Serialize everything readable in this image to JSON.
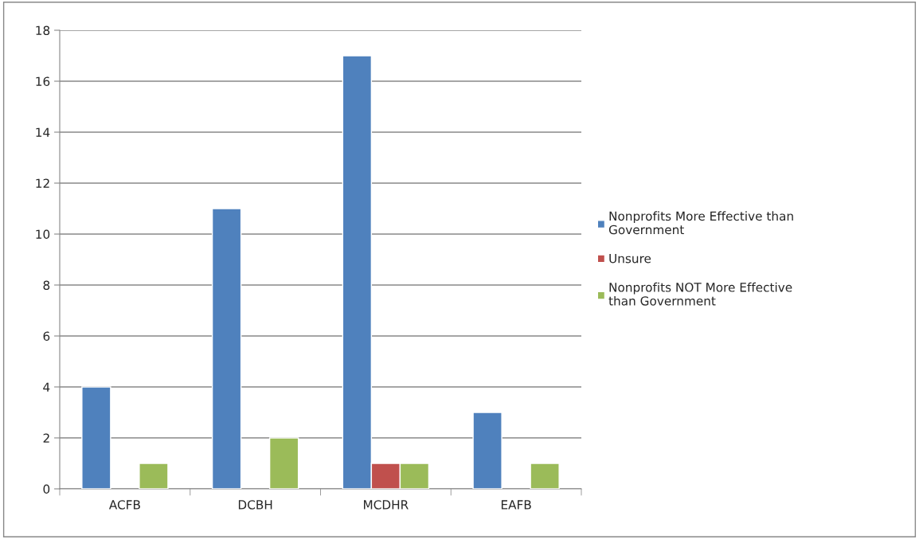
{
  "chart_data": {
    "type": "bar",
    "categories": [
      "ACFB",
      "DCBH",
      "MCDHR",
      "EAFB"
    ],
    "series": [
      {
        "name": "Nonprofits More Effective than Government",
        "color": "#4f81bd",
        "values": [
          4,
          11,
          17,
          3
        ]
      },
      {
        "name": "Unsure",
        "color": "#c0504d",
        "values": [
          null,
          null,
          1,
          null
        ]
      },
      {
        "name": "Nonprofits NOT More Effective than Government",
        "color": "#9bbb59",
        "values": [
          1,
          2,
          1,
          1
        ]
      }
    ],
    "ylim": [
      0,
      18
    ],
    "yticks": [
      0,
      2,
      4,
      6,
      8,
      10,
      12,
      14,
      16,
      18
    ],
    "grid": "y",
    "legend": "right"
  }
}
